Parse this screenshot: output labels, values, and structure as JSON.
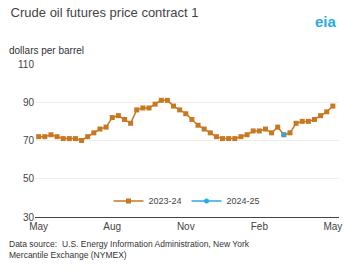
{
  "chart_data": {
    "type": "line",
    "title": "Crude oil futures price contract 1",
    "subtitle": "dollars per barrel",
    "annotations": [
      {
        "text": "Data source:  U.S. Energy Information Administration, New York\nMercantile Exchange (NYMEX)"
      },
      {
        "text": "eia",
        "color": "#29ABE2"
      }
    ],
    "xlim": [
      -0.3,
      24.5
    ],
    "xticks": [
      {
        "value": 0,
        "label": "May"
      },
      {
        "value": 6,
        "label": "Aug"
      },
      {
        "value": 12,
        "label": "Nov"
      },
      {
        "value": 18,
        "label": "Feb"
      },
      {
        "value": 24,
        "label": "May"
      }
    ],
    "ylim": [
      30,
      110
    ],
    "yticks": [
      30,
      50,
      70,
      90,
      110
    ],
    "grid": true,
    "legend": "lower center",
    "series": [
      {
        "name": "2023-24",
        "color": "#C87820",
        "marker": "square",
        "x": [
          0,
          0.5,
          1,
          1.5,
          2,
          2.5,
          3,
          3.5,
          4,
          4.5,
          5,
          5.5,
          6,
          6.5,
          7,
          7.5,
          8,
          8.5,
          9,
          9.5,
          10,
          10.5,
          11,
          11.5,
          12,
          12.5,
          13,
          13.5,
          14,
          14.5,
          15,
          15.5,
          16,
          16.5,
          17,
          17.5,
          18,
          18.5,
          19,
          19.5,
          20,
          20.5,
          21,
          21.5,
          22,
          22.5,
          23,
          23.5,
          24
        ],
        "values": [
          72,
          72,
          73,
          72,
          71,
          71,
          71,
          70,
          72,
          74,
          76,
          77,
          82,
          83,
          81,
          79,
          86,
          87,
          87,
          89,
          91,
          91,
          88,
          86,
          84,
          81,
          78,
          76,
          74,
          72,
          71,
          71,
          71,
          72,
          73,
          75,
          75,
          76,
          74,
          77,
          73,
          74,
          79,
          80,
          80,
          81,
          83,
          85,
          88
        ]
      },
      {
        "name": "2024-25",
        "color": "#29ABE2",
        "marker": "circle",
        "x": [
          20
        ],
        "values": [
          73
        ]
      }
    ]
  }
}
